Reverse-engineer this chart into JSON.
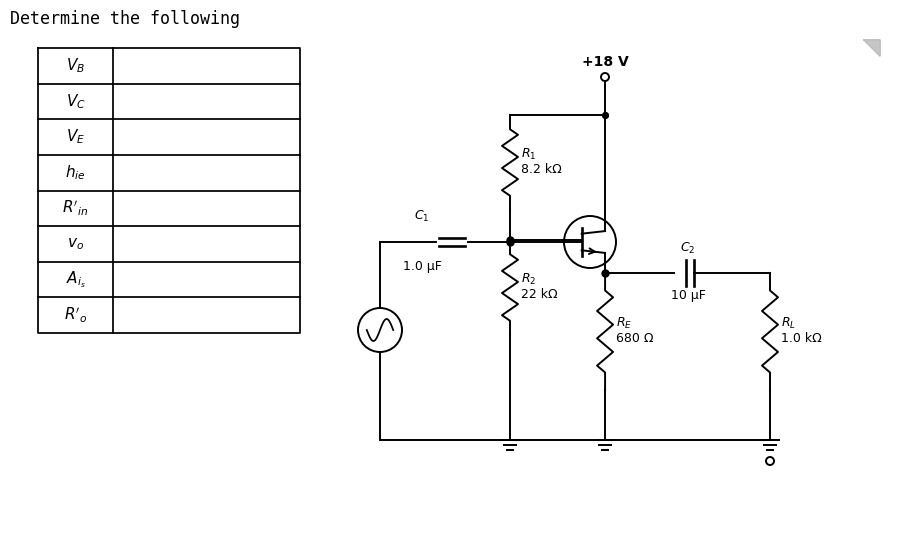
{
  "title": "Determine the following",
  "table_rows": [
    "$V_B$",
    "$V_C$",
    "$V_E$",
    "$h_{ie}$",
    "$R'_{in}$",
    "$v_o$",
    "$A_{i_s}$",
    "$R'_o$"
  ],
  "bg_color": "#ffffff",
  "text_color": "#000000",
  "vcc_label": "+18 V",
  "r1_label1": "$R_1$",
  "r1_label2": "8.2 kΩ",
  "r2_label1": "$R_2$",
  "r2_label2": "22 kΩ",
  "re_label1": "$R_E$",
  "re_label2": "680 Ω",
  "rl_label1": "$R_L$",
  "rl_label2": "1.0 kΩ",
  "c1_label": "$C_1$",
  "c1_val": "1.0 μF",
  "c2_label": "$C_2$",
  "c2_val": "10 μF",
  "title_fontsize": 12,
  "label_fontsize": 9,
  "corner_color": "#888888"
}
